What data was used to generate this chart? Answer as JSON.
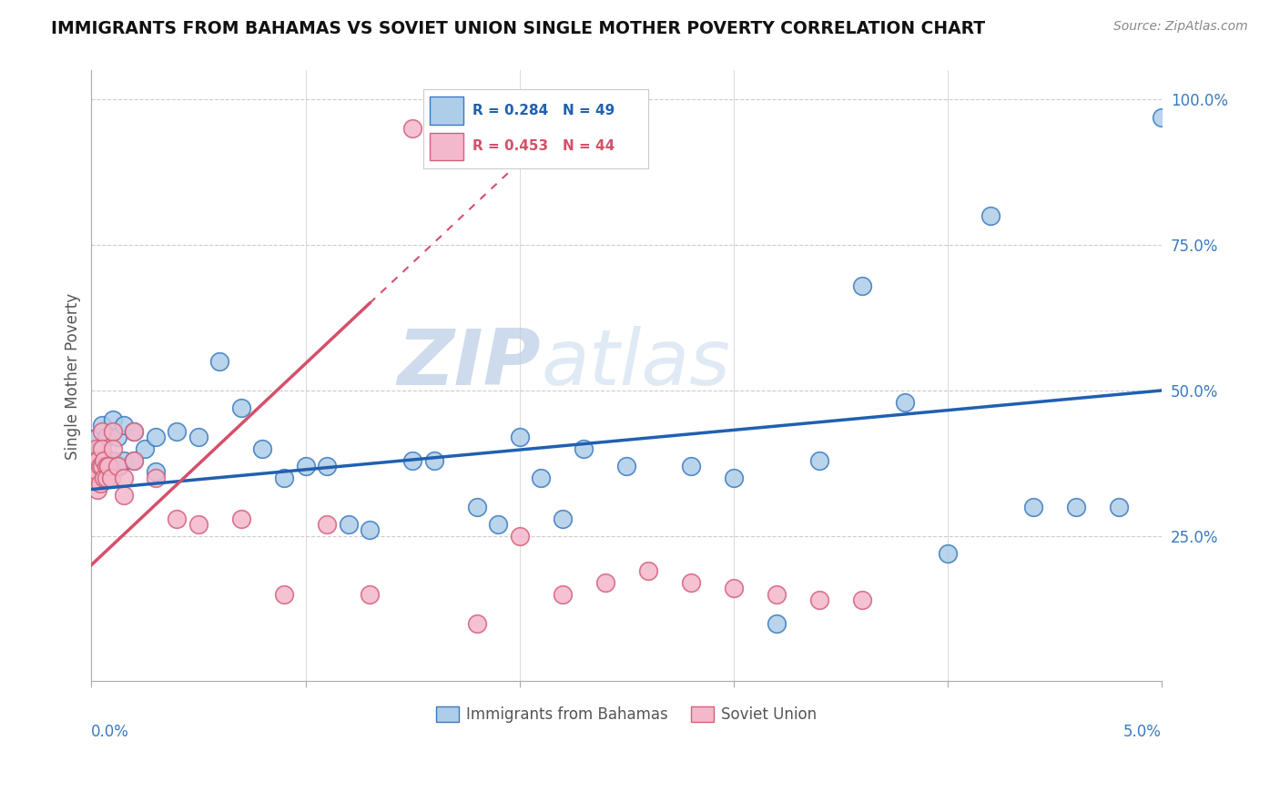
{
  "title": "IMMIGRANTS FROM BAHAMAS VS SOVIET UNION SINGLE MOTHER POVERTY CORRELATION CHART",
  "source": "Source: ZipAtlas.com",
  "ylabel": "Single Mother Poverty",
  "xlim": [
    0.0,
    0.05
  ],
  "ylim": [
    0.0,
    1.05
  ],
  "legend_R1": "0.284",
  "legend_N1": "49",
  "legend_R2": "0.453",
  "legend_N2": "44",
  "label1": "Immigrants from Bahamas",
  "label2": "Soviet Union",
  "color1": "#aecde8",
  "color2": "#f4b8cc",
  "edge_color1": "#3a7abf",
  "edge_color2": "#d4607a",
  "trend_color1": "#2060b0",
  "trend_color2": "#d4506a",
  "watermark_zip": "ZIP",
  "watermark_atlas": "atlas",
  "grid_color": "#cccccc",
  "bahamas_x": [
    0.0002,
    0.0003,
    0.0004,
    0.0005,
    0.0006,
    0.0007,
    0.0008,
    0.001,
    0.001,
    0.0012,
    0.0013,
    0.0015,
    0.0015,
    0.002,
    0.002,
    0.0025,
    0.003,
    0.003,
    0.004,
    0.005,
    0.006,
    0.007,
    0.008,
    0.009,
    0.01,
    0.011,
    0.012,
    0.013,
    0.015,
    0.016,
    0.018,
    0.019,
    0.02,
    0.021,
    0.022,
    0.023,
    0.025,
    0.028,
    0.03,
    0.032,
    0.034,
    0.036,
    0.038,
    0.04,
    0.042,
    0.044,
    0.046,
    0.048,
    0.05
  ],
  "bahamas_y": [
    0.37,
    0.42,
    0.4,
    0.44,
    0.38,
    0.42,
    0.38,
    0.45,
    0.38,
    0.42,
    0.37,
    0.44,
    0.38,
    0.43,
    0.38,
    0.4,
    0.36,
    0.42,
    0.43,
    0.42,
    0.55,
    0.47,
    0.4,
    0.35,
    0.37,
    0.37,
    0.27,
    0.26,
    0.38,
    0.38,
    0.3,
    0.27,
    0.42,
    0.35,
    0.28,
    0.4,
    0.37,
    0.37,
    0.35,
    0.1,
    0.38,
    0.68,
    0.48,
    0.22,
    0.8,
    0.3,
    0.3,
    0.3,
    0.97
  ],
  "soviet_x": [
    0.0001,
    0.0001,
    0.0002,
    0.0002,
    0.0002,
    0.0003,
    0.0003,
    0.0003,
    0.0004,
    0.0004,
    0.0005,
    0.0005,
    0.0005,
    0.0006,
    0.0006,
    0.0007,
    0.0007,
    0.0008,
    0.0009,
    0.001,
    0.001,
    0.0012,
    0.0015,
    0.0015,
    0.002,
    0.002,
    0.003,
    0.004,
    0.005,
    0.007,
    0.009,
    0.011,
    0.013,
    0.015,
    0.018,
    0.02,
    0.022,
    0.024,
    0.026,
    0.028,
    0.03,
    0.032,
    0.034,
    0.036
  ],
  "soviet_y": [
    0.37,
    0.35,
    0.4,
    0.38,
    0.35,
    0.38,
    0.36,
    0.33,
    0.37,
    0.34,
    0.43,
    0.4,
    0.37,
    0.38,
    0.35,
    0.37,
    0.35,
    0.37,
    0.35,
    0.43,
    0.4,
    0.37,
    0.35,
    0.32,
    0.43,
    0.38,
    0.35,
    0.28,
    0.27,
    0.28,
    0.15,
    0.27,
    0.15,
    0.95,
    0.1,
    0.25,
    0.15,
    0.17,
    0.19,
    0.17,
    0.16,
    0.15,
    0.14,
    0.14
  ]
}
